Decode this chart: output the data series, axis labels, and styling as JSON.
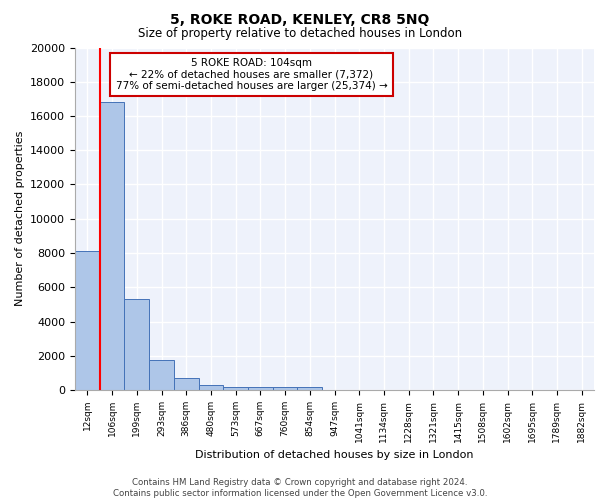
{
  "title1": "5, ROKE ROAD, KENLEY, CR8 5NQ",
  "title2": "Size of property relative to detached houses in London",
  "xlabel": "Distribution of detached houses by size in London",
  "ylabel": "Number of detached properties",
  "bin_labels": [
    "12sqm",
    "106sqm",
    "199sqm",
    "293sqm",
    "386sqm",
    "480sqm",
    "573sqm",
    "667sqm",
    "760sqm",
    "854sqm",
    "947sqm",
    "1041sqm",
    "1134sqm",
    "1228sqm",
    "1321sqm",
    "1415sqm",
    "1508sqm",
    "1602sqm",
    "1695sqm",
    "1789sqm",
    "1882sqm"
  ],
  "bar_heights": [
    8100,
    16800,
    5300,
    1750,
    700,
    300,
    200,
    175,
    175,
    150,
    0,
    0,
    0,
    0,
    0,
    0,
    0,
    0,
    0,
    0,
    0
  ],
  "bar_color": "#aec6e8",
  "bar_edge_color": "#4472b8",
  "annotation_text": "5 ROKE ROAD: 104sqm\n← 22% of detached houses are smaller (7,372)\n77% of semi-detached houses are larger (25,374) →",
  "annotation_box_color": "#ffffff",
  "annotation_box_edge": "#cc0000",
  "footnote1": "Contains HM Land Registry data © Crown copyright and database right 2024.",
  "footnote2": "Contains public sector information licensed under the Open Government Licence v3.0.",
  "ylim": [
    0,
    20000
  ],
  "background_color": "#eef2fb",
  "grid_color": "#ffffff"
}
